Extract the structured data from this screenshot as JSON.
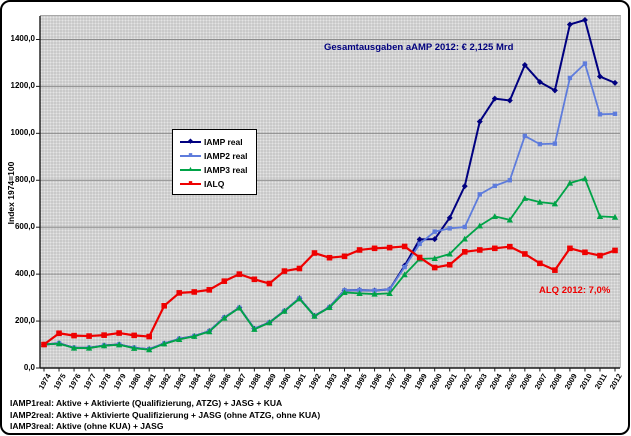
{
  "axis": {
    "y_title": "Index 1974=100"
  },
  "annotations": {
    "gesamtausgaben": "Gesamtausgaben aAMP 2012: € 2,125 Mrd",
    "alq": "ALQ 2012: 7,0%"
  },
  "legend": {
    "items": [
      {
        "label": "IAMP real"
      },
      {
        "label": "IAMP2 real"
      },
      {
        "label": "IAMP3 real"
      },
      {
        "label": "IALQ"
      }
    ]
  },
  "footer": {
    "lines": [
      "IAMP1real: Aktive + Aktivierte (Qualifizierung, ATZG) + JASG + KUA",
      "IAMP2real: Aktive + Aktivierte Qualifizierung + JASG (ohne ATZG, ohne KUA)",
      "IAMP3real: Aktive (ohne KUA) + JASG"
    ]
  },
  "chart_data": {
    "type": "line",
    "title": "",
    "xlabel": "",
    "ylabel": "Index 1974=100",
    "ylim": [
      0,
      1500
    ],
    "yticks": [
      0,
      200,
      400,
      600,
      800,
      1000,
      1200,
      1400
    ],
    "grid": true,
    "legend_position": "upper-left-inside",
    "x": [
      1974,
      1975,
      1976,
      1977,
      1978,
      1979,
      1980,
      1981,
      1982,
      1983,
      1984,
      1985,
      1986,
      1987,
      1988,
      1989,
      1990,
      1991,
      1992,
      1993,
      1994,
      1995,
      1996,
      1997,
      1998,
      1999,
      2000,
      2001,
      2002,
      2003,
      2004,
      2005,
      2006,
      2007,
      2008,
      2009,
      2010,
      2011,
      2012
    ],
    "series": [
      {
        "name": "IAMP real",
        "color": "#000080",
        "marker": "diamond",
        "width": 2.0,
        "values": [
          100,
          105,
          86,
          86,
          96,
          100,
          86,
          80,
          104,
          124,
          136,
          157,
          215,
          257,
          167,
          194,
          243,
          297,
          222,
          259,
          331,
          332,
          330,
          335,
          436,
          548,
          549,
          640,
          775,
          1050,
          1148,
          1140,
          1291,
          1219,
          1183,
          1464,
          1483,
          1242,
          1215
        ]
      },
      {
        "name": "IAMP2 real",
        "color": "#5e7cdc",
        "marker": "square",
        "width": 1.8,
        "values": [
          100,
          105,
          86,
          86,
          96,
          100,
          86,
          80,
          104,
          124,
          136,
          157,
          215,
          257,
          167,
          194,
          243,
          297,
          222,
          259,
          331,
          332,
          330,
          335,
          430,
          529,
          581,
          595,
          601,
          740,
          776,
          800,
          989,
          954,
          956,
          1236,
          1297,
          1081,
          1083
        ]
      },
      {
        "name": "IAMP3 real",
        "color": "#00a347",
        "marker": "triangle",
        "width": 1.8,
        "values": [
          100,
          104,
          85,
          85,
          95,
          99,
          84,
          78,
          103,
          122,
          135,
          155,
          213,
          256,
          165,
          193,
          242,
          295,
          221,
          258,
          322,
          318,
          315,
          318,
          398,
          465,
          467,
          486,
          550,
          606,
          646,
          631,
          723,
          707,
          700,
          788,
          807,
          646,
          643
        ]
      },
      {
        "name": "IALQ",
        "color": "#ee0000",
        "marker": "bigsquare",
        "width": 2.2,
        "values": [
          100,
          148,
          138,
          136,
          140,
          149,
          139,
          134,
          265,
          320,
          324,
          333,
          370,
          400,
          378,
          360,
          413,
          424,
          490,
          470,
          476,
          503,
          510,
          513,
          518,
          471,
          428,
          440,
          495,
          503,
          510,
          517,
          486,
          446,
          417,
          510,
          493,
          479,
          501
        ]
      }
    ]
  }
}
